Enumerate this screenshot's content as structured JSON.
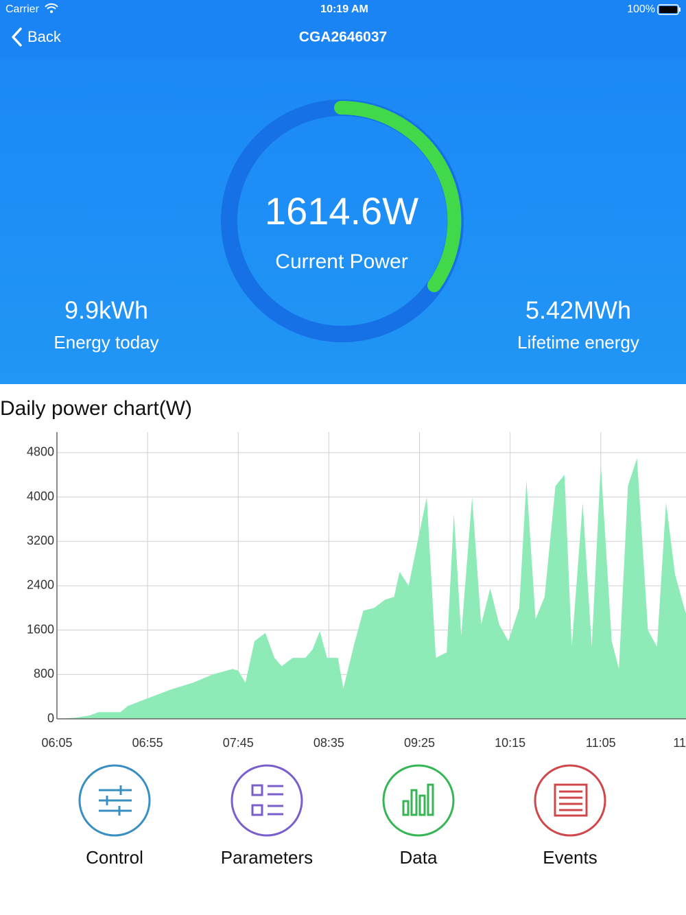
{
  "status": {
    "carrier": "Carrier",
    "time": "10:19 AM",
    "battery": "100%"
  },
  "nav": {
    "back": "Back",
    "title": "CGA2646037"
  },
  "gauge": {
    "value": "1614.6W",
    "label": "Current Power"
  },
  "stats": [
    {
      "value": "9.9kWh",
      "label": "Energy today"
    },
    {
      "value": "5.42MWh",
      "label": "Lifetime energy"
    }
  ],
  "chart_data": {
    "type": "area",
    "title": "Daily power chart(W)",
    "color": "#8eebb8",
    "x": [
      365,
      375,
      383,
      388,
      400,
      404,
      415,
      428,
      440,
      451,
      462,
      465,
      469,
      474,
      480,
      485,
      489,
      495,
      502,
      506,
      510,
      514,
      520,
      523,
      529,
      534,
      540,
      546,
      551,
      554,
      559,
      564,
      569,
      574,
      580,
      584,
      588,
      594,
      599,
      604,
      609,
      614,
      620,
      624,
      629,
      634,
      640,
      645,
      649,
      655,
      660,
      665,
      671,
      675,
      680,
      685,
      691,
      696,
      701,
      706,
      711,
      712
    ],
    "values": [
      0,
      20,
      60,
      120,
      120,
      230,
      370,
      530,
      650,
      800,
      900,
      870,
      650,
      1400,
      1550,
      1100,
      950,
      1100,
      1100,
      1250,
      1580,
      1100,
      1100,
      550,
      1350,
      1950,
      2000,
      2150,
      2200,
      2650,
      2400,
      3200,
      4000,
      1100,
      1200,
      3700,
      1500,
      4000,
      1700,
      2350,
      1700,
      1400,
      2000,
      4300,
      1800,
      2200,
      4200,
      4400,
      1300,
      3900,
      1300,
      4600,
      1400,
      900,
      4200,
      4700,
      1600,
      1300,
      3900,
      2600,
      2000,
      1900
    ],
    "xlim": [
      365,
      712
    ],
    "xticks": [
      {
        "value": 365,
        "label": "06:05"
      },
      {
        "value": 415,
        "label": "06:55"
      },
      {
        "value": 465,
        "label": "07:45"
      },
      {
        "value": 515,
        "label": "08:35"
      },
      {
        "value": 565,
        "label": "09:25"
      },
      {
        "value": 615,
        "label": "10:15"
      },
      {
        "value": 665,
        "label": "11:05"
      },
      {
        "value": 715,
        "label": "11"
      }
    ],
    "ylim": [
      0,
      5170
    ],
    "yticks": [
      0,
      800,
      1600,
      2400,
      3200,
      4000,
      4800
    ],
    "grid": true
  },
  "actions": [
    "Control",
    "Parameters",
    "Data",
    "Events"
  ]
}
